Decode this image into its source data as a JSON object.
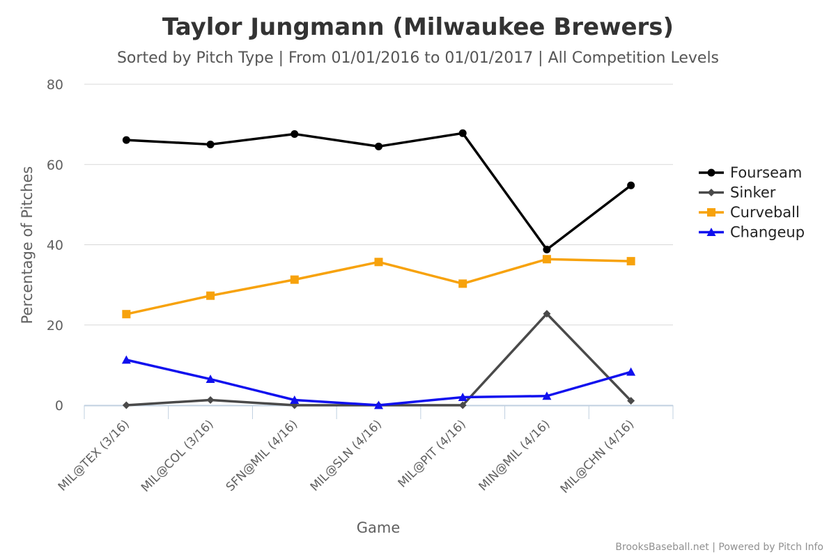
{
  "chart_data": {
    "type": "line",
    "title": "Taylor Jungmann (Milwaukee Brewers)",
    "subtitle": "Sorted by Pitch Type | From 01/01/2016 to 01/01/2017 | All Competition Levels",
    "xlabel": "Game",
    "ylabel": "Percentage of Pitches",
    "ylim": [
      0,
      80
    ],
    "yticks": [
      0,
      20,
      40,
      60,
      80
    ],
    "grid": true,
    "legend_position": "right",
    "categories": [
      "MIL@TEX (3/16)",
      "MIL@COL (3/16)",
      "SFN@MIL (4/16)",
      "MIL@SLN (4/16)",
      "MIL@PIT (4/16)",
      "MIN@MIL (4/16)",
      "MIL@CHN (4/16)"
    ],
    "series": [
      {
        "name": "Fourseam",
        "color": "#000000",
        "marker": "circle",
        "values": [
          66.1,
          65.0,
          67.6,
          64.5,
          67.8,
          38.8,
          54.8
        ]
      },
      {
        "name": "Sinker",
        "color": "#4a4a4a",
        "marker": "diamond",
        "values": [
          0.0,
          1.3,
          0.0,
          0.0,
          0.0,
          22.8,
          1.1
        ]
      },
      {
        "name": "Curveball",
        "color": "#f7a20c",
        "marker": "square",
        "values": [
          22.7,
          27.3,
          31.3,
          35.7,
          30.3,
          36.4,
          35.9
        ]
      },
      {
        "name": "Changeup",
        "color": "#1010ee",
        "marker": "triangle",
        "values": [
          11.3,
          6.5,
          1.3,
          0.0,
          2.0,
          2.3,
          8.3
        ]
      }
    ],
    "credits": "BrooksBaseball.net | Powered by Pitch Info"
  }
}
